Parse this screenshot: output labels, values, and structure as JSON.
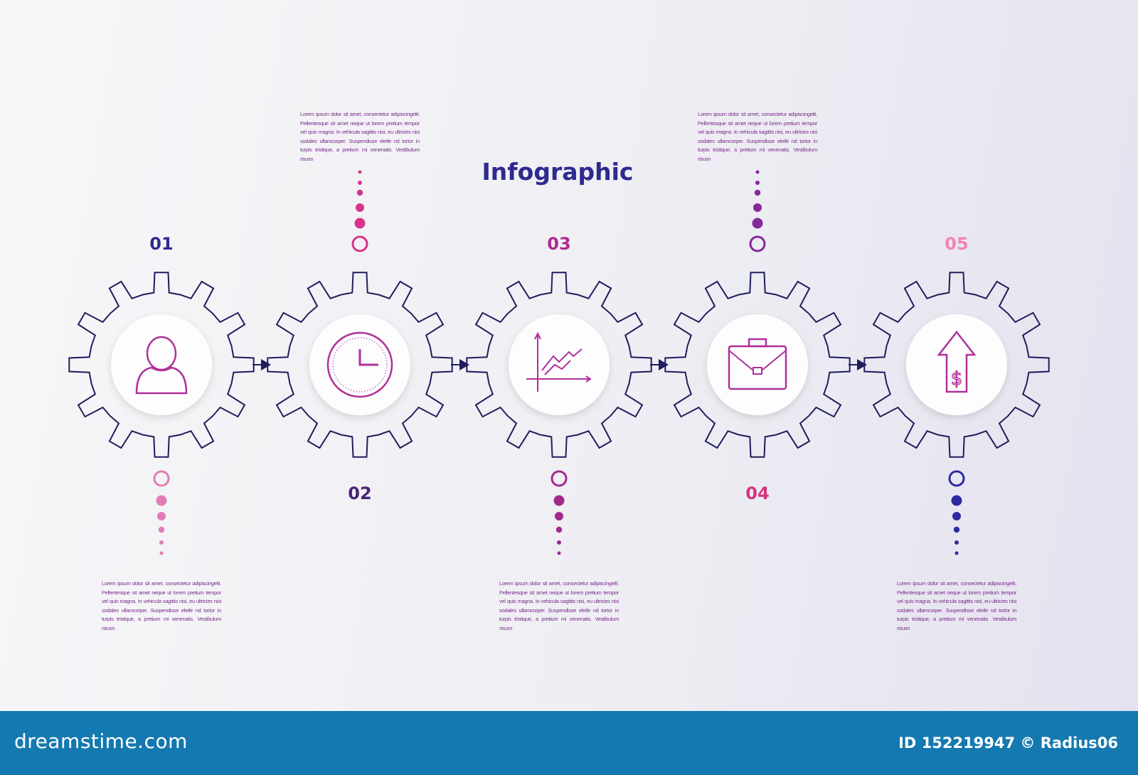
{
  "title": "Infographic",
  "colors": {
    "gear_stroke": "#1f1d5c",
    "icon": "#b0309a",
    "title": "#2e2a8f",
    "footer": "#1479b0"
  },
  "steps": [
    {
      "number": "01",
      "icon": "user-icon",
      "number_color": "#2e2a8f",
      "dot_color": "#e37cb5",
      "position": "bottom",
      "text": "Lorem ipsum dolor sit amet, consectetur adipiscingelit. Pellentesque sit amet neque ut lorem pretium tempor vel quis magna. In vehicula sagittis nisi, eu ultricies nisi sodales ullamcorper. Suspendisse eleife nd tortor in turpis tristique, a pretium mi venenatis. Vestibulum risusn"
    },
    {
      "number": "02",
      "icon": "clock-icon",
      "number_color": "#4b2376",
      "dot_color": "#d6338c",
      "position": "top",
      "text": "Lorem ipsum dolor sit amet, consectetur adipiscingelit. Pellentesque sit amet neque ut lorem pretium tempor vel quis magna. In vehicula sagittis nisi, eu ultricies nisi sodales ullamcorper. Suspendisse eleife nd tortor in turpis tristique, a pretium mi venenatis. Vestibulum risusn"
    },
    {
      "number": "03",
      "icon": "growth-chart-icon",
      "number_color": "#b02a8c",
      "dot_color": "#a3288c",
      "position": "bottom",
      "text": "Lorem ipsum dolor sit amet, consectetur adipiscingelit. Pellentesque sit amet neque ut lorem pretium tempor vel quis magna. In vehicula sagittis nisi, eu ultricies nisi sodales ullamcorper. Suspendisse eleife nd tortor in turpis tristique, a pretium mi venenatis. Vestibulum risusn"
    },
    {
      "number": "04",
      "icon": "briefcase-icon",
      "number_color": "#d6337f",
      "dot_color": "#86289a",
      "position": "top",
      "text": "Lorem ipsum dolor sit amet, consectetur adipiscingelit. Pellentesque sit amet neque ut lorem pretium tempor vel quis magna. In vehicula sagittis nisi, eu ultricies nisi sodales ullamcorper. Suspendisse eleife nd tortor in turpis tristique, a pretium mi venenatis. Vestibulum risusn"
    },
    {
      "number": "05",
      "icon": "dollar-arrow-up-icon",
      "number_color": "#ef86b8",
      "dot_color": "#2e2aa0",
      "position": "bottom",
      "text": "Lorem ipsum dolor sit amet, consectetur adipiscingelit. Pellentesque sit amet neque ut lorem pretium tempor vel quis magna. In vehicula sagittis nisi, eu ultricies nisi sodales ullamcorper. Suspendisse eleife nd tortor in turpis tristique, a pretium mi venenatis. Vestibulum risusn"
    }
  ],
  "footer": {
    "brand": "dreamstime.com",
    "credit": "ID 152219947 © Radius06"
  }
}
